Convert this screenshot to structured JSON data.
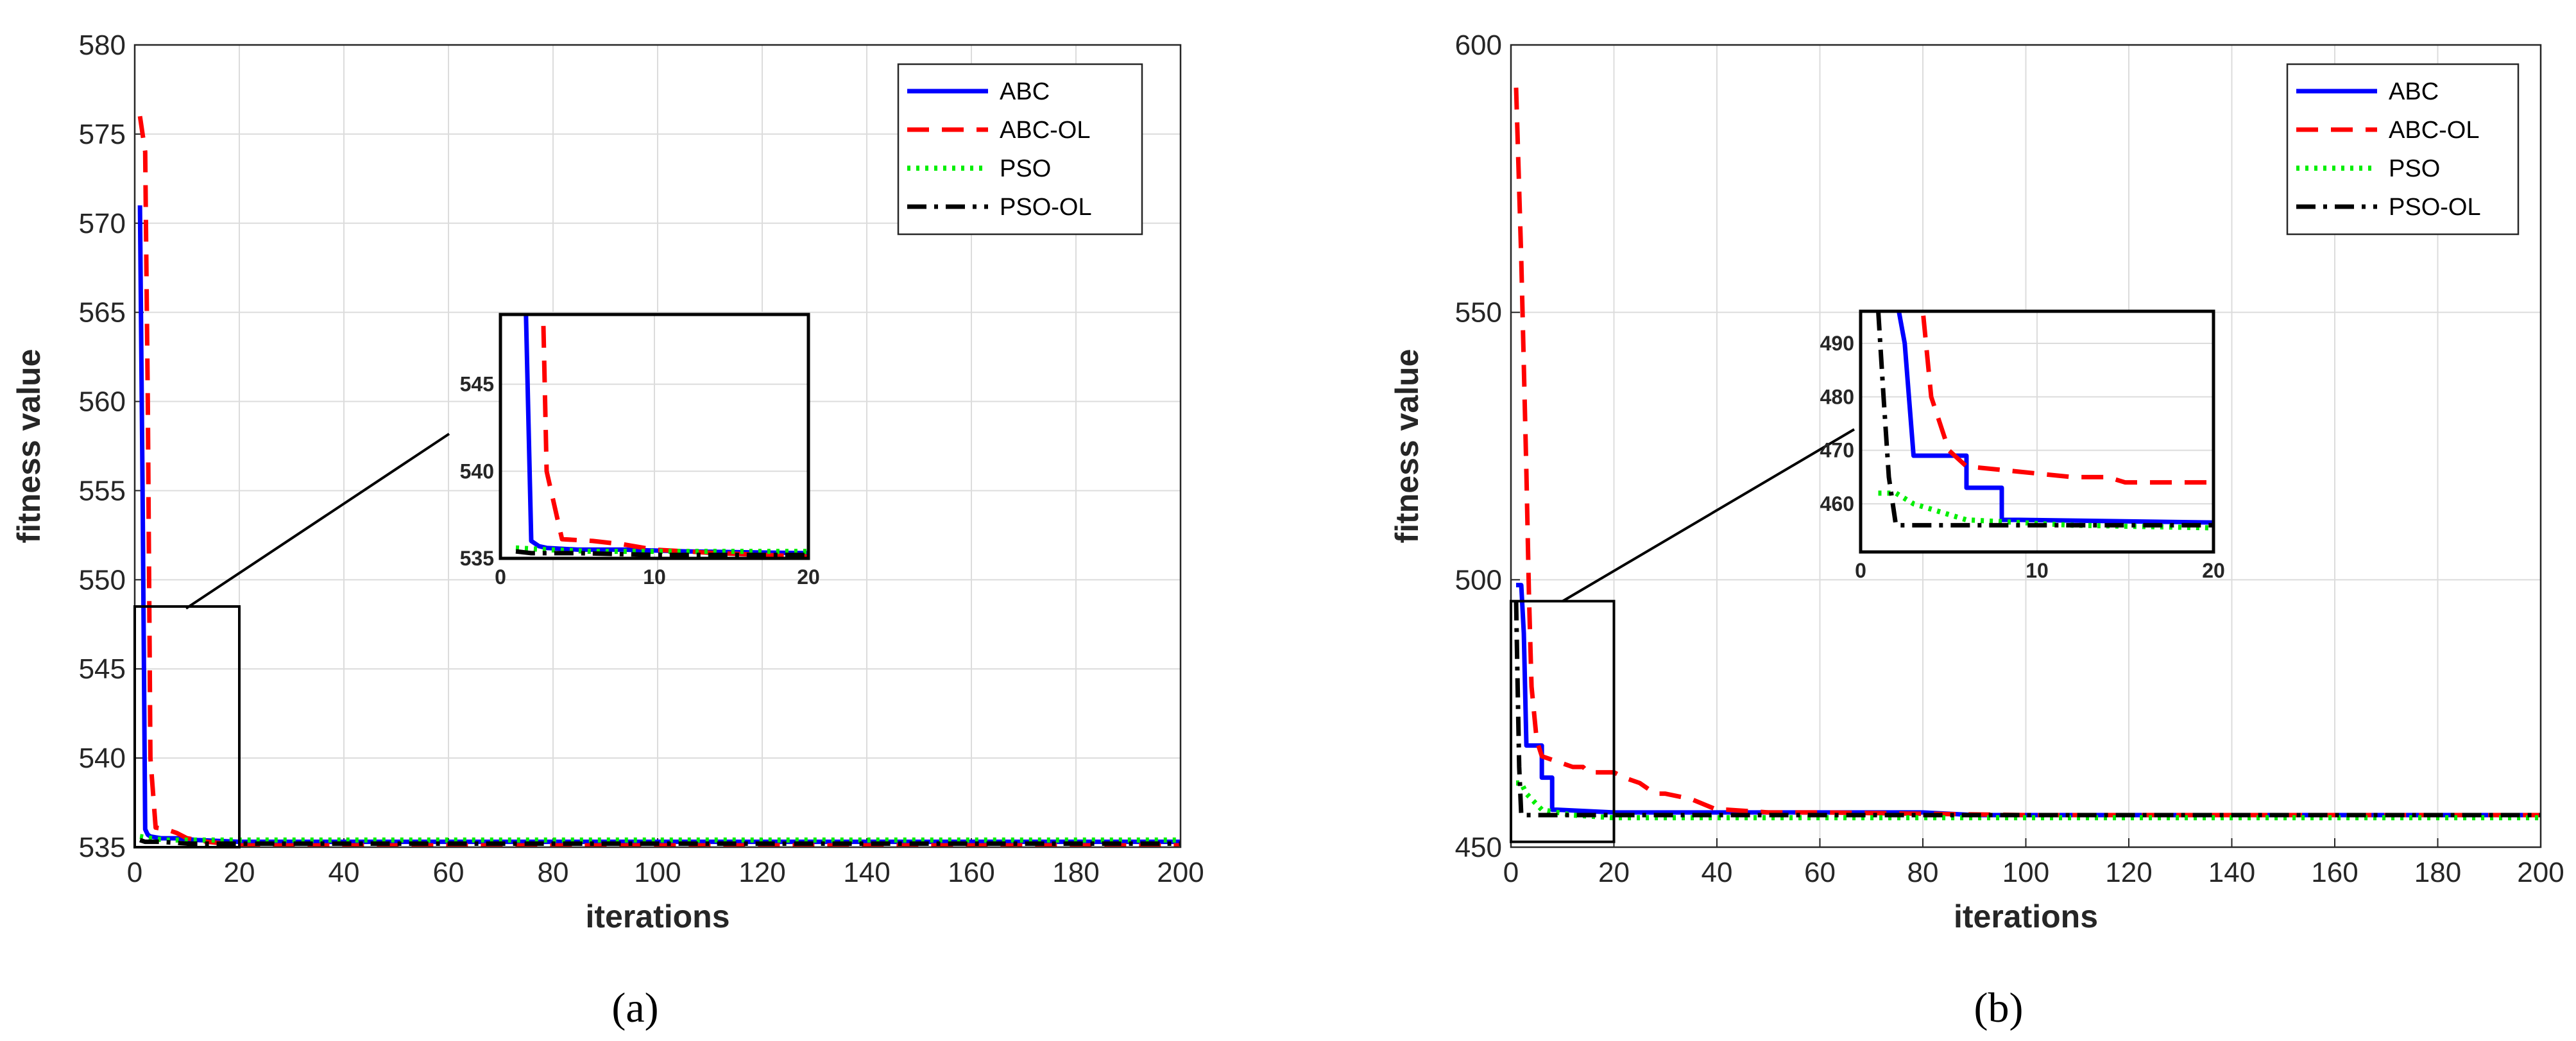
{
  "figure": {
    "captions": [
      "(a)",
      "(b)"
    ]
  },
  "chart_data": [
    {
      "type": "line",
      "xlabel": "iterations",
      "ylabel": "fitness value",
      "xlim": [
        0,
        200
      ],
      "ylim": [
        535,
        580
      ],
      "xticks": [
        0,
        20,
        40,
        60,
        80,
        100,
        120,
        140,
        160,
        180,
        200
      ],
      "yticks": [
        535,
        540,
        545,
        550,
        555,
        560,
        565,
        570,
        575,
        580
      ],
      "grid": true,
      "legend_position": "top-right",
      "series": [
        {
          "name": "ABC",
          "color": "#0000ff",
          "style": "solid",
          "x": [
            1,
            1.5,
            2,
            2.5,
            3,
            5,
            8,
            12,
            20,
            40,
            80,
            120,
            160,
            200
          ],
          "y": [
            571,
            555,
            536,
            535.7,
            535.6,
            535.5,
            535.5,
            535.4,
            535.3,
            535.3,
            535.3,
            535.3,
            535.3,
            535.3
          ]
        },
        {
          "name": "ABC-OL",
          "color": "#ff0000",
          "style": "dashed",
          "x": [
            1,
            2,
            2.5,
            3,
            4,
            6,
            8,
            10,
            14,
            20,
            40,
            80,
            120,
            160,
            200
          ],
          "y": [
            576,
            574,
            560,
            540,
            536.1,
            536,
            535.8,
            535.5,
            535.3,
            535.1,
            535.1,
            535.1,
            535.1,
            535.1,
            535.1
          ]
        },
        {
          "name": "PSO",
          "color": "#00ee00",
          "style": "dotted",
          "x": [
            1,
            3,
            6,
            10,
            20,
            60,
            100,
            150,
            200
          ],
          "y": [
            535.6,
            535.5,
            535.4,
            535.4,
            535.4,
            535.4,
            535.4,
            535.4,
            535.4
          ]
        },
        {
          "name": "PSO-OL",
          "color": "#000000",
          "style": "dashdot",
          "x": [
            1,
            2,
            5,
            10,
            20,
            60,
            100,
            150,
            200
          ],
          "y": [
            535.4,
            535.3,
            535.3,
            535.2,
            535.2,
            535.2,
            535.2,
            535.2,
            535.2
          ]
        }
      ],
      "zoom_box": {
        "x": [
          0,
          20
        ],
        "y": [
          535,
          548.5
        ]
      },
      "inset": {
        "xlim": [
          0,
          20
        ],
        "ylim": [
          535,
          549
        ],
        "xticks": [
          0,
          10,
          20
        ],
        "yticks": [
          535,
          540,
          545
        ]
      }
    },
    {
      "type": "line",
      "xlabel": "iterations",
      "ylabel": "fitness value",
      "xlim": [
        0,
        200
      ],
      "ylim": [
        450,
        600
      ],
      "xticks": [
        0,
        20,
        40,
        60,
        80,
        100,
        120,
        140,
        160,
        180,
        200
      ],
      "yticks": [
        450,
        500,
        550,
        600
      ],
      "grid": true,
      "legend_position": "top-right",
      "series": [
        {
          "name": "ABC",
          "color": "#0000ff",
          "style": "solid",
          "x": [
            1,
            2,
            2.5,
            3,
            4,
            6,
            6,
            8,
            8,
            9,
            20,
            40,
            80,
            90,
            100,
            140,
            200
          ],
          "y": [
            499,
            499,
            490,
            469,
            469,
            469,
            463,
            463,
            457,
            457,
            456.5,
            456.5,
            456.5,
            456,
            456,
            456,
            456
          ]
        },
        {
          "name": "ABC-OL",
          "color": "#ff0000",
          "style": "dashed",
          "x": [
            1,
            2,
            3,
            3.5,
            4,
            5,
            6,
            9,
            12,
            14,
            15,
            18,
            20,
            22,
            25,
            28,
            30,
            35,
            40,
            42,
            50,
            60,
            100,
            140,
            200
          ],
          "y": [
            592,
            560,
            520,
            497,
            480,
            470,
            467,
            466,
            465,
            465,
            464,
            464,
            464,
            463,
            462,
            460,
            460,
            459,
            457,
            457,
            456.5,
            456.5,
            456,
            456,
            456
          ]
        },
        {
          "name": "PSO",
          "color": "#00ee00",
          "style": "dotted",
          "x": [
            1,
            2,
            3,
            4,
            6,
            9,
            12,
            20,
            60,
            100,
            150,
            200
          ],
          "y": [
            462,
            462,
            460,
            459,
            457,
            456.5,
            456,
            455.5,
            455.5,
            455.5,
            455.5,
            455.5
          ]
        },
        {
          "name": "PSO-OL",
          "color": "#000000",
          "style": "dashdot",
          "x": [
            1,
            1.3,
            1.6,
            2,
            3,
            10,
            20,
            60,
            100,
            150,
            200
          ],
          "y": [
            496,
            480,
            465,
            456,
            456,
            456,
            456,
            456,
            456,
            456,
            456
          ]
        }
      ],
      "zoom_box": {
        "x": [
          0,
          20
        ],
        "y": [
          451,
          496
        ]
      },
      "inset": {
        "xlim": [
          0,
          20
        ],
        "ylim": [
          451,
          496
        ],
        "xticks": [
          0,
          10,
          20
        ],
        "yticks": [
          460,
          470,
          480,
          490
        ]
      }
    }
  ]
}
